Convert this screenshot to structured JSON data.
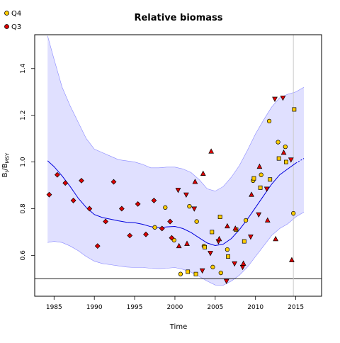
{
  "chart_data": {
    "type": "scatter",
    "title": "Relative biomass",
    "xlabel": "Time",
    "ylabel_main": "B",
    "ylabel_sub1": "t",
    "ylabel_slash": "/B",
    "ylabel_sub2": "MSY",
    "xlim": [
      1982.6,
      2018.2
    ],
    "ylim": [
      0.425,
      1.545
    ],
    "x_ticks": [
      1985,
      1990,
      1995,
      2000,
      2005,
      2010,
      2015
    ],
    "y_ticks": [
      0.6,
      0.8,
      1.0,
      1.2,
      1.4
    ],
    "y_tick_labels": [
      "0.6",
      "0.8",
      "1.0",
      "1.2",
      "1.4"
    ],
    "reference_line_y": 0.5,
    "vertical_line_x": 2014.7,
    "legend": [
      {
        "label": "Q4",
        "color": "#ffcc00"
      },
      {
        "label": "Q3",
        "color": "#e00000"
      }
    ],
    "legend_placement": "top-left, outside plot",
    "colors": {
      "band_fill": "#e0e0ff",
      "band_edge": "#8888ff",
      "median_line": "#0000dd",
      "vline": "#cccccc",
      "refline": "#000000"
    },
    "median": [
      {
        "x": 1984.2,
        "y": 1.005
      },
      {
        "x": 1985,
        "y": 0.98
      },
      {
        "x": 1986,
        "y": 0.94
      },
      {
        "x": 1987,
        "y": 0.895
      },
      {
        "x": 1988,
        "y": 0.845
      },
      {
        "x": 1989,
        "y": 0.805
      },
      {
        "x": 1990,
        "y": 0.775
      },
      {
        "x": 1991,
        "y": 0.762
      },
      {
        "x": 1992,
        "y": 0.755
      },
      {
        "x": 1993,
        "y": 0.748
      },
      {
        "x": 1994,
        "y": 0.742
      },
      {
        "x": 1995,
        "y": 0.74
      },
      {
        "x": 1996,
        "y": 0.733
      },
      {
        "x": 1997,
        "y": 0.723
      },
      {
        "x": 1998,
        "y": 0.718
      },
      {
        "x": 1999,
        "y": 0.722
      },
      {
        "x": 2000,
        "y": 0.724
      },
      {
        "x": 2001,
        "y": 0.715
      },
      {
        "x": 2002,
        "y": 0.698
      },
      {
        "x": 2003,
        "y": 0.675
      },
      {
        "x": 2004,
        "y": 0.653
      },
      {
        "x": 2005,
        "y": 0.642
      },
      {
        "x": 2006,
        "y": 0.648
      },
      {
        "x": 2007,
        "y": 0.672
      },
      {
        "x": 2008,
        "y": 0.71
      },
      {
        "x": 2009,
        "y": 0.755
      },
      {
        "x": 2010,
        "y": 0.805
      },
      {
        "x": 2011,
        "y": 0.855
      },
      {
        "x": 2012,
        "y": 0.905
      },
      {
        "x": 2013,
        "y": 0.945
      },
      {
        "x": 2014,
        "y": 0.97
      },
      {
        "x": 2015,
        "y": 0.995
      }
    ],
    "median_projection": [
      {
        "x": 2015,
        "y": 0.995
      },
      {
        "x": 2016,
        "y": 1.015
      }
    ],
    "band_upper": [
      {
        "x": 1984.2,
        "y": 1.54
      },
      {
        "x": 1985,
        "y": 1.44
      },
      {
        "x": 1986,
        "y": 1.32
      },
      {
        "x": 1987,
        "y": 1.24
      },
      {
        "x": 1988,
        "y": 1.17
      },
      {
        "x": 1989,
        "y": 1.1
      },
      {
        "x": 1990,
        "y": 1.055
      },
      {
        "x": 1991,
        "y": 1.04
      },
      {
        "x": 1992,
        "y": 1.025
      },
      {
        "x": 1993,
        "y": 1.01
      },
      {
        "x": 1994,
        "y": 1.005
      },
      {
        "x": 1995,
        "y": 1.0
      },
      {
        "x": 1996,
        "y": 0.99
      },
      {
        "x": 1997,
        "y": 0.975
      },
      {
        "x": 1998,
        "y": 0.975
      },
      {
        "x": 1999,
        "y": 0.978
      },
      {
        "x": 2000,
        "y": 0.978
      },
      {
        "x": 2001,
        "y": 0.97
      },
      {
        "x": 2002,
        "y": 0.955
      },
      {
        "x": 2003,
        "y": 0.925
      },
      {
        "x": 2004,
        "y": 0.885
      },
      {
        "x": 2005,
        "y": 0.875
      },
      {
        "x": 2006,
        "y": 0.895
      },
      {
        "x": 2007,
        "y": 0.935
      },
      {
        "x": 2008,
        "y": 0.985
      },
      {
        "x": 2009,
        "y": 1.05
      },
      {
        "x": 2010,
        "y": 1.12
      },
      {
        "x": 2011,
        "y": 1.18
      },
      {
        "x": 2012,
        "y": 1.235
      },
      {
        "x": 2013,
        "y": 1.275
      },
      {
        "x": 2014,
        "y": 1.29
      },
      {
        "x": 2015,
        "y": 1.3
      },
      {
        "x": 2016,
        "y": 1.32
      }
    ],
    "band_lower": [
      {
        "x": 1984.2,
        "y": 0.655
      },
      {
        "x": 1985,
        "y": 0.66
      },
      {
        "x": 1986,
        "y": 0.655
      },
      {
        "x": 1987,
        "y": 0.64
      },
      {
        "x": 1988,
        "y": 0.62
      },
      {
        "x": 1989,
        "y": 0.595
      },
      {
        "x": 1990,
        "y": 0.575
      },
      {
        "x": 1991,
        "y": 0.565
      },
      {
        "x": 1992,
        "y": 0.56
      },
      {
        "x": 1993,
        "y": 0.555
      },
      {
        "x": 1994,
        "y": 0.55
      },
      {
        "x": 1995,
        "y": 0.548
      },
      {
        "x": 1996,
        "y": 0.548
      },
      {
        "x": 1997,
        "y": 0.545
      },
      {
        "x": 1998,
        "y": 0.543
      },
      {
        "x": 1999,
        "y": 0.545
      },
      {
        "x": 2000,
        "y": 0.548
      },
      {
        "x": 2001,
        "y": 0.54
      },
      {
        "x": 2002,
        "y": 0.528
      },
      {
        "x": 2003,
        "y": 0.51
      },
      {
        "x": 2004,
        "y": 0.49
      },
      {
        "x": 2005,
        "y": 0.473
      },
      {
        "x": 2006,
        "y": 0.472
      },
      {
        "x": 2007,
        "y": 0.49
      },
      {
        "x": 2008,
        "y": 0.515
      },
      {
        "x": 2009,
        "y": 0.55
      },
      {
        "x": 2010,
        "y": 0.595
      },
      {
        "x": 2011,
        "y": 0.64
      },
      {
        "x": 2012,
        "y": 0.685
      },
      {
        "x": 2013,
        "y": 0.715
      },
      {
        "x": 2014,
        "y": 0.735
      },
      {
        "x": 2015,
        "y": 0.765
      },
      {
        "x": 2016,
        "y": 0.785
      }
    ],
    "series": [
      {
        "name": "Q4",
        "color": "#ffcc00",
        "points": [
          {
            "x": 1997.5,
            "y": 0.72,
            "shape": "circle"
          },
          {
            "x": 1998.8,
            "y": 0.805,
            "shape": "circle"
          },
          {
            "x": 1999.9,
            "y": 0.665,
            "shape": "circle"
          },
          {
            "x": 2000.7,
            "y": 0.52,
            "shape": "circle"
          },
          {
            "x": 2001.6,
            "y": 0.53,
            "shape": "square"
          },
          {
            "x": 2001.8,
            "y": 0.81,
            "shape": "circle"
          },
          {
            "x": 2002.6,
            "y": 0.52,
            "shape": "square"
          },
          {
            "x": 2002.7,
            "y": 0.745,
            "shape": "circle"
          },
          {
            "x": 2003.6,
            "y": 0.64,
            "shape": "circle"
          },
          {
            "x": 2003.7,
            "y": 0.635,
            "shape": "square"
          },
          {
            "x": 2004.6,
            "y": 0.7,
            "shape": "square"
          },
          {
            "x": 2004.7,
            "y": 0.55,
            "shape": "circle"
          },
          {
            "x": 2005.6,
            "y": 0.765,
            "shape": "square"
          },
          {
            "x": 2005.7,
            "y": 0.525,
            "shape": "circle"
          },
          {
            "x": 2006.5,
            "y": 0.625,
            "shape": "circle"
          },
          {
            "x": 2006.6,
            "y": 0.595,
            "shape": "square"
          },
          {
            "x": 2007.6,
            "y": 0.71,
            "shape": "square"
          },
          {
            "x": 2008.6,
            "y": 0.66,
            "shape": "square"
          },
          {
            "x": 2008.8,
            "y": 0.75,
            "shape": "circle"
          },
          {
            "x": 2009.7,
            "y": 0.92,
            "shape": "circle"
          },
          {
            "x": 2009.8,
            "y": 0.93,
            "shape": "square"
          },
          {
            "x": 2010.6,
            "y": 0.89,
            "shape": "square"
          },
          {
            "x": 2010.7,
            "y": 0.945,
            "shape": "circle"
          },
          {
            "x": 2011.7,
            "y": 1.175,
            "shape": "circle"
          },
          {
            "x": 2011.8,
            "y": 0.925,
            "shape": "square"
          },
          {
            "x": 2012.8,
            "y": 1.085,
            "shape": "circle"
          },
          {
            "x": 2012.9,
            "y": 1.015,
            "shape": "square"
          },
          {
            "x": 2013.7,
            "y": 1.065,
            "shape": "circle"
          },
          {
            "x": 2013.8,
            "y": 1.0,
            "shape": "square"
          },
          {
            "x": 2014.7,
            "y": 0.78,
            "shape": "circle"
          },
          {
            "x": 2014.8,
            "y": 1.225,
            "shape": "square"
          }
        ]
      },
      {
        "name": "Q3",
        "color": "#e00000",
        "points": [
          {
            "x": 1984.4,
            "y": 0.86,
            "shape": "diamond"
          },
          {
            "x": 1985.4,
            "y": 0.945,
            "shape": "diamond"
          },
          {
            "x": 1986.4,
            "y": 0.91,
            "shape": "diamond"
          },
          {
            "x": 1987.4,
            "y": 0.835,
            "shape": "diamond"
          },
          {
            "x": 1988.4,
            "y": 0.92,
            "shape": "diamond"
          },
          {
            "x": 1989.4,
            "y": 0.8,
            "shape": "diamond"
          },
          {
            "x": 1990.4,
            "y": 0.64,
            "shape": "diamond"
          },
          {
            "x": 1991.4,
            "y": 0.745,
            "shape": "diamond"
          },
          {
            "x": 1992.4,
            "y": 0.915,
            "shape": "diamond"
          },
          {
            "x": 1993.4,
            "y": 0.8,
            "shape": "diamond"
          },
          {
            "x": 1994.4,
            "y": 0.685,
            "shape": "diamond"
          },
          {
            "x": 1995.4,
            "y": 0.82,
            "shape": "diamond"
          },
          {
            "x": 1996.4,
            "y": 0.69,
            "shape": "diamond"
          },
          {
            "x": 1997.4,
            "y": 0.835,
            "shape": "diamond"
          },
          {
            "x": 1998.4,
            "y": 0.715,
            "shape": "diamond"
          },
          {
            "x": 1999.4,
            "y": 0.745,
            "shape": "diamond"
          },
          {
            "x": 1999.6,
            "y": 0.675,
            "shape": "diamond"
          },
          {
            "x": 2000.4,
            "y": 0.88,
            "shape": "triangle-down"
          },
          {
            "x": 2000.5,
            "y": 0.64,
            "shape": "triangle-up"
          },
          {
            "x": 2001.4,
            "y": 0.86,
            "shape": "triangle-down"
          },
          {
            "x": 2001.5,
            "y": 0.65,
            "shape": "triangle-up"
          },
          {
            "x": 2002.4,
            "y": 0.8,
            "shape": "triangle-down"
          },
          {
            "x": 2002.5,
            "y": 0.915,
            "shape": "triangle-up"
          },
          {
            "x": 2003.4,
            "y": 0.535,
            "shape": "triangle-down"
          },
          {
            "x": 2003.5,
            "y": 0.95,
            "shape": "triangle-up"
          },
          {
            "x": 2004.4,
            "y": 0.61,
            "shape": "triangle-down"
          },
          {
            "x": 2004.5,
            "y": 1.045,
            "shape": "triangle-up"
          },
          {
            "x": 2005.4,
            "y": 0.66,
            "shape": "triangle-down"
          },
          {
            "x": 2005.5,
            "y": 0.67,
            "shape": "triangle-up"
          },
          {
            "x": 2006.4,
            "y": 0.49,
            "shape": "triangle-down"
          },
          {
            "x": 2006.5,
            "y": 0.725,
            "shape": "triangle-up"
          },
          {
            "x": 2007.4,
            "y": 0.565,
            "shape": "triangle-down"
          },
          {
            "x": 2007.5,
            "y": 0.715,
            "shape": "triangle-up"
          },
          {
            "x": 2008.4,
            "y": 0.55,
            "shape": "triangle-down"
          },
          {
            "x": 2008.5,
            "y": 0.565,
            "shape": "triangle-up"
          },
          {
            "x": 2009.4,
            "y": 0.68,
            "shape": "triangle-down"
          },
          {
            "x": 2009.5,
            "y": 0.86,
            "shape": "triangle-up"
          },
          {
            "x": 2010.4,
            "y": 0.775,
            "shape": "triangle-down"
          },
          {
            "x": 2010.5,
            "y": 0.98,
            "shape": "triangle-up"
          },
          {
            "x": 2011.4,
            "y": 0.885,
            "shape": "triangle-down"
          },
          {
            "x": 2011.5,
            "y": 0.75,
            "shape": "triangle-up"
          },
          {
            "x": 2012.4,
            "y": 1.27,
            "shape": "triangle-down"
          },
          {
            "x": 2012.5,
            "y": 0.67,
            "shape": "triangle-up"
          },
          {
            "x": 2013.4,
            "y": 1.275,
            "shape": "triangle-down"
          },
          {
            "x": 2013.5,
            "y": 1.04,
            "shape": "triangle-up"
          },
          {
            "x": 2014.4,
            "y": 1.01,
            "shape": "triangle-down"
          },
          {
            "x": 2014.5,
            "y": 0.58,
            "shape": "triangle-up"
          }
        ]
      }
    ]
  }
}
